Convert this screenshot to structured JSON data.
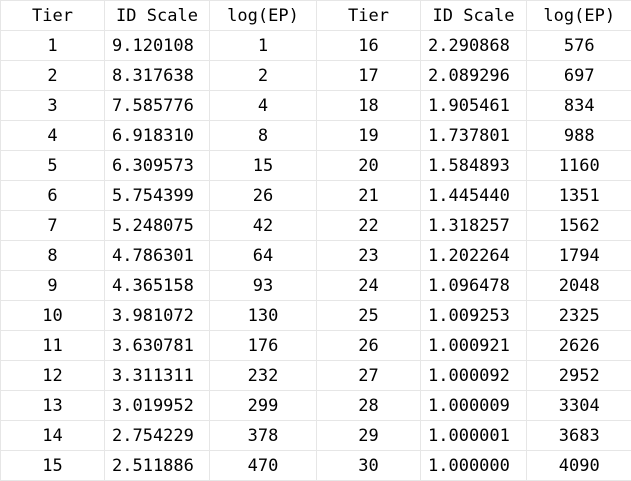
{
  "table": {
    "headers": [
      "Tier",
      "ID Scale",
      "log(EP)",
      "Tier",
      "ID Scale",
      "log(EP)"
    ],
    "rows": [
      [
        "1",
        "9.120108",
        "1",
        "16",
        "2.290868",
        "576"
      ],
      [
        "2",
        "8.317638",
        "2",
        "17",
        "2.089296",
        "697"
      ],
      [
        "3",
        "7.585776",
        "4",
        "18",
        "1.905461",
        "834"
      ],
      [
        "4",
        "6.918310",
        "8",
        "19",
        "1.737801",
        "988"
      ],
      [
        "5",
        "6.309573",
        "15",
        "20",
        "1.584893",
        "1160"
      ],
      [
        "6",
        "5.754399",
        "26",
        "21",
        "1.445440",
        "1351"
      ],
      [
        "7",
        "5.248075",
        "42",
        "22",
        "1.318257",
        "1562"
      ],
      [
        "8",
        "4.786301",
        "64",
        "23",
        "1.202264",
        "1794"
      ],
      [
        "9",
        "4.365158",
        "93",
        "24",
        "1.096478",
        "2048"
      ],
      [
        "10",
        "3.981072",
        "130",
        "25",
        "1.009253",
        "2325"
      ],
      [
        "11",
        "3.630781",
        "176",
        "26",
        "1.000921",
        "2626"
      ],
      [
        "12",
        "3.311311",
        "232",
        "27",
        "1.000092",
        "2952"
      ],
      [
        "13",
        "3.019952",
        "299",
        "28",
        "1.000009",
        "3304"
      ],
      [
        "14",
        "2.754229",
        "378",
        "29",
        "1.000001",
        "3683"
      ],
      [
        "15",
        "2.511886",
        "470",
        "30",
        "1.000000",
        "4090"
      ]
    ]
  },
  "colors": {
    "background": "#ffffff",
    "gridline": "#e6e6e6",
    "text": "#000000"
  }
}
